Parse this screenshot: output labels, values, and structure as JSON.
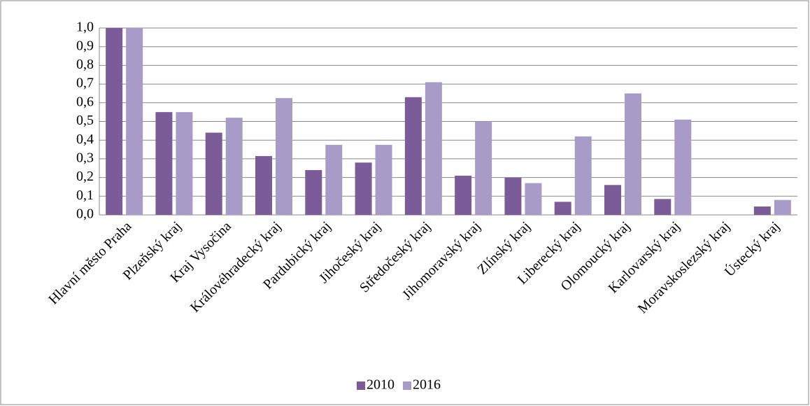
{
  "chart_data": {
    "type": "bar",
    "categories": [
      "Hlavní město Praha",
      "Plzeňský kraj",
      "Kraj Vysočina",
      "Královéhradecký kraj",
      "Pardubický kraj",
      "Jihočeský kraj",
      "Středočeský kraj",
      "Jihomoravský kraj",
      "Zlínský kraj",
      "Liberecký kraj",
      "Olomoucký kraj",
      "Karlovarský kraj",
      "Moravskoslezský kraj",
      "Ústecký kraj"
    ],
    "series": [
      {
        "name": "2010",
        "color": "#7b5c99",
        "values": [
          1.0,
          0.55,
          0.44,
          0.315,
          0.24,
          0.28,
          0.63,
          0.21,
          0.2,
          0.07,
          0.16,
          0.085,
          0,
          0.045
        ]
      },
      {
        "name": "2016",
        "color": "#a99bc7",
        "values": [
          1.0,
          0.55,
          0.52,
          0.625,
          0.375,
          0.375,
          0.71,
          0.5,
          0.17,
          0.42,
          0.65,
          0.51,
          0,
          0.08
        ]
      }
    ],
    "ylim": [
      0,
      1
    ],
    "yticks": [
      {
        "value": 0,
        "label": "0,0"
      },
      {
        "value": 0.1,
        "label": "0,1"
      },
      {
        "value": 0.2,
        "label": "0,2"
      },
      {
        "value": 0.3,
        "label": "0,3"
      },
      {
        "value": 0.4,
        "label": "0,4"
      },
      {
        "value": 0.5,
        "label": "0,5"
      },
      {
        "value": 0.6,
        "label": "0,6"
      },
      {
        "value": 0.7,
        "label": "0,7"
      },
      {
        "value": 0.8,
        "label": "0,8"
      },
      {
        "value": 0.9,
        "label": "0,9"
      },
      {
        "value": 1,
        "label": "1,0"
      }
    ],
    "grid": true,
    "legend": "bottom"
  }
}
